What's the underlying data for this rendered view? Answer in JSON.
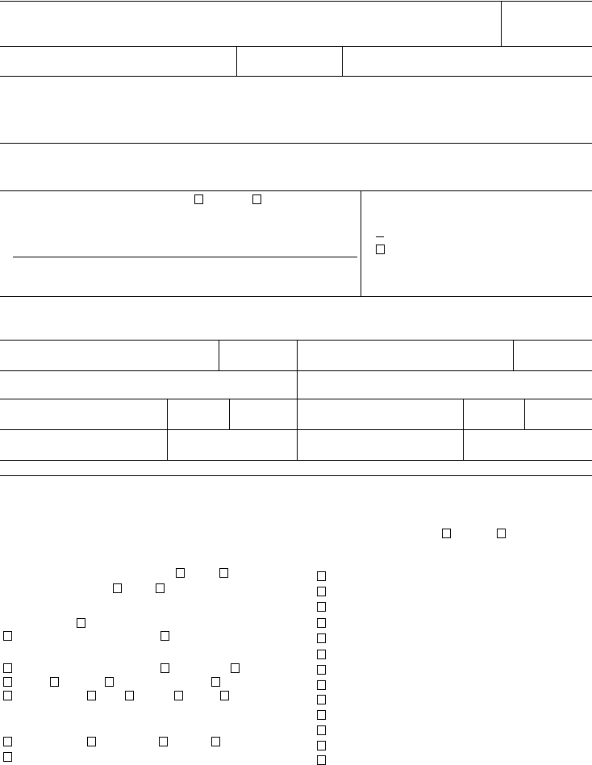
{
  "form": {
    "ink_color": "#000000",
    "paper_color": "#ffffff",
    "checkboxes_checked": [
      false,
      false,
      false,
      false,
      false,
      false,
      false,
      false,
      false,
      false,
      false,
      false,
      false,
      false,
      false,
      false,
      false,
      false,
      false,
      false,
      false,
      false,
      false,
      false,
      false,
      false,
      false,
      false,
      false,
      false,
      false,
      false,
      false,
      false,
      false,
      false,
      false,
      false,
      false,
      false,
      false,
      false
    ]
  }
}
